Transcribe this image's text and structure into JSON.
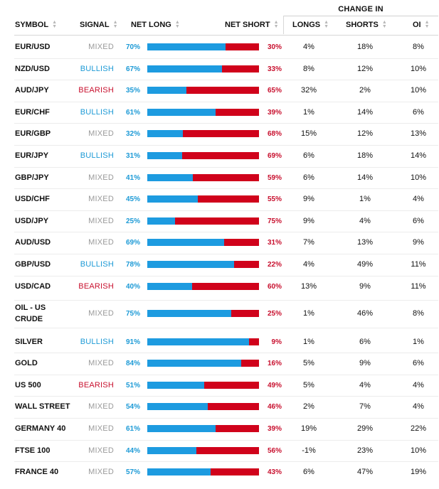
{
  "header": {
    "group_label": "CHANGE IN",
    "symbol": "SYMBOL",
    "signal": "SIGNAL",
    "net_long": "NET LONG",
    "net_short": "NET SHORT",
    "longs": "LONGS",
    "shorts": "SHORTS",
    "oi": "OI"
  },
  "colors": {
    "long": "#1d9be0",
    "short": "#d0021b",
    "bullish": "#1d9ad6",
    "bearish": "#c8102e",
    "mixed": "#9a9a9a"
  },
  "rows": [
    {
      "symbol": "EUR/USD",
      "signal": "MIXED",
      "long_pct": "70%",
      "long_value": 70,
      "short_pct": "30%",
      "longs": "4%",
      "shorts": "18%",
      "oi": "8%"
    },
    {
      "symbol": "NZD/USD",
      "signal": "BULLISH",
      "long_pct": "67%",
      "long_value": 67,
      "short_pct": "33%",
      "longs": "8%",
      "shorts": "12%",
      "oi": "10%"
    },
    {
      "symbol": "AUD/JPY",
      "signal": "BEARISH",
      "long_pct": "35%",
      "long_value": 35,
      "short_pct": "65%",
      "longs": "32%",
      "shorts": "2%",
      "oi": "10%"
    },
    {
      "symbol": "EUR/CHF",
      "signal": "BULLISH",
      "long_pct": "61%",
      "long_value": 61,
      "short_pct": "39%",
      "longs": "1%",
      "shorts": "14%",
      "oi": "6%"
    },
    {
      "symbol": "EUR/GBP",
      "signal": "MIXED",
      "long_pct": "32%",
      "long_value": 32,
      "short_pct": "68%",
      "longs": "15%",
      "shorts": "12%",
      "oi": "13%"
    },
    {
      "symbol": "EUR/JPY",
      "signal": "BULLISH",
      "long_pct": "31%",
      "long_value": 31,
      "short_pct": "69%",
      "longs": "6%",
      "shorts": "18%",
      "oi": "14%"
    },
    {
      "symbol": "GBP/JPY",
      "signal": "MIXED",
      "long_pct": "41%",
      "long_value": 41,
      "short_pct": "59%",
      "longs": "6%",
      "shorts": "14%",
      "oi": "10%"
    },
    {
      "symbol": "USD/CHF",
      "signal": "MIXED",
      "long_pct": "45%",
      "long_value": 45,
      "short_pct": "55%",
      "longs": "9%",
      "shorts": "1%",
      "oi": "4%"
    },
    {
      "symbol": "USD/JPY",
      "signal": "MIXED",
      "long_pct": "25%",
      "long_value": 25,
      "short_pct": "75%",
      "longs": "9%",
      "shorts": "4%",
      "oi": "6%"
    },
    {
      "symbol": "AUD/USD",
      "signal": "MIXED",
      "long_pct": "69%",
      "long_value": 69,
      "short_pct": "31%",
      "longs": "7%",
      "shorts": "13%",
      "oi": "9%"
    },
    {
      "symbol": "GBP/USD",
      "signal": "BULLISH",
      "long_pct": "78%",
      "long_value": 78,
      "short_pct": "22%",
      "longs": "4%",
      "shorts": "49%",
      "oi": "11%"
    },
    {
      "symbol": "USD/CAD",
      "signal": "BEARISH",
      "long_pct": "40%",
      "long_value": 40,
      "short_pct": "60%",
      "longs": "13%",
      "shorts": "9%",
      "oi": "11%"
    },
    {
      "symbol": "OIL - US CRUDE",
      "signal": "MIXED",
      "long_pct": "75%",
      "long_value": 75,
      "short_pct": "25%",
      "longs": "1%",
      "shorts": "46%",
      "oi": "8%"
    },
    {
      "symbol": "SILVER",
      "signal": "BULLISH",
      "long_pct": "91%",
      "long_value": 91,
      "short_pct": "9%",
      "longs": "1%",
      "shorts": "6%",
      "oi": "1%"
    },
    {
      "symbol": "GOLD",
      "signal": "MIXED",
      "long_pct": "84%",
      "long_value": 84,
      "short_pct": "16%",
      "longs": "5%",
      "shorts": "9%",
      "oi": "6%"
    },
    {
      "symbol": "US 500",
      "signal": "BEARISH",
      "long_pct": "51%",
      "long_value": 51,
      "short_pct": "49%",
      "longs": "5%",
      "shorts": "4%",
      "oi": "4%"
    },
    {
      "symbol": "WALL STREET",
      "signal": "MIXED",
      "long_pct": "54%",
      "long_value": 54,
      "short_pct": "46%",
      "longs": "2%",
      "shorts": "7%",
      "oi": "4%"
    },
    {
      "symbol": "GERMANY 40",
      "signal": "MIXED",
      "long_pct": "61%",
      "long_value": 61,
      "short_pct": "39%",
      "longs": "19%",
      "shorts": "29%",
      "oi": "22%"
    },
    {
      "symbol": "FTSE 100",
      "signal": "MIXED",
      "long_pct": "44%",
      "long_value": 44,
      "short_pct": "56%",
      "longs": "-1%",
      "shorts": "23%",
      "oi": "10%"
    },
    {
      "symbol": "FRANCE 40",
      "signal": "MIXED",
      "long_pct": "57%",
      "long_value": 57,
      "short_pct": "43%",
      "longs": "6%",
      "shorts": "47%",
      "oi": "19%"
    }
  ]
}
